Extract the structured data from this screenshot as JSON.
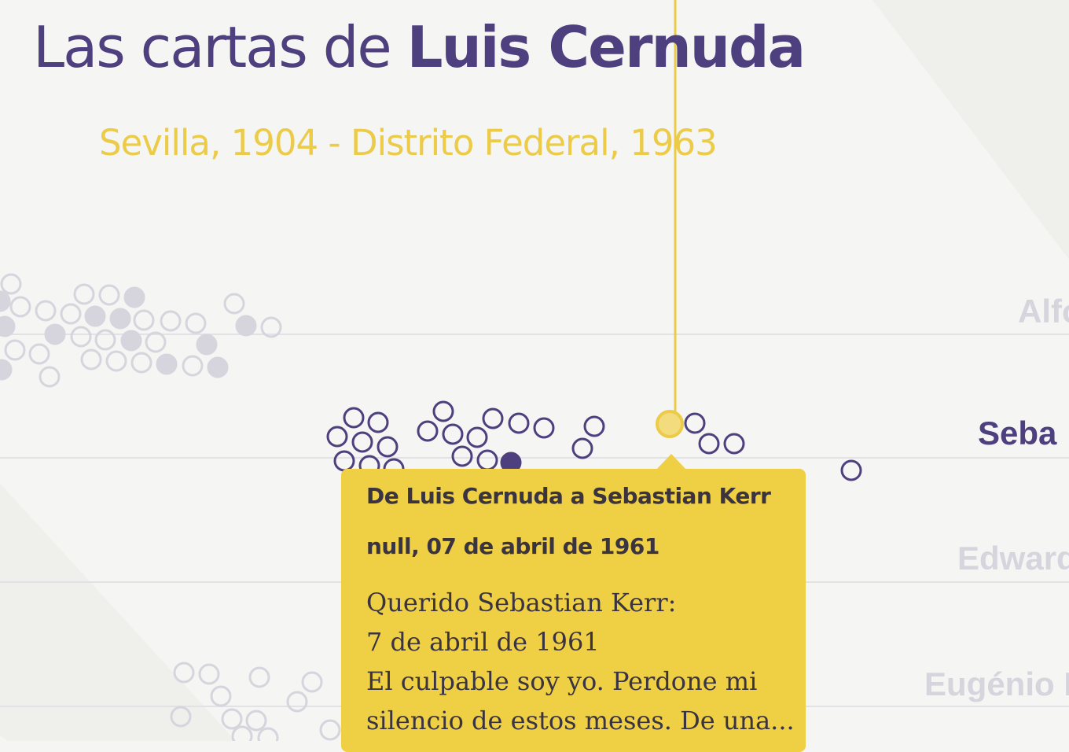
{
  "header": {
    "title_prefix": "Las cartas de ",
    "title_name": "Luis Cernuda",
    "subtitle": "Sevilla, 1904 - Distrito Federal, 1963"
  },
  "rows": [
    {
      "label": "Alfo",
      "active": false
    },
    {
      "label": "Seba",
      "active": true
    },
    {
      "label": "Edward",
      "active": false
    },
    {
      "label": "Eugénio I",
      "active": false
    }
  ],
  "tooltip": {
    "heading": "De Luis Cernuda a Sebastian Kerr",
    "date": "null, 07 de abril de 1961",
    "body": [
      "Querido Sebastian Kerr:",
      "7 de abril de 1961",
      "El culpable soy yo. Perdone mi",
      "silencio de estos meses. De una..."
    ]
  },
  "colors": {
    "background": "#f5f5f3",
    "purple": "#4e3f7e",
    "yellow": "#efcf44",
    "faded": "#d6d4dc"
  }
}
